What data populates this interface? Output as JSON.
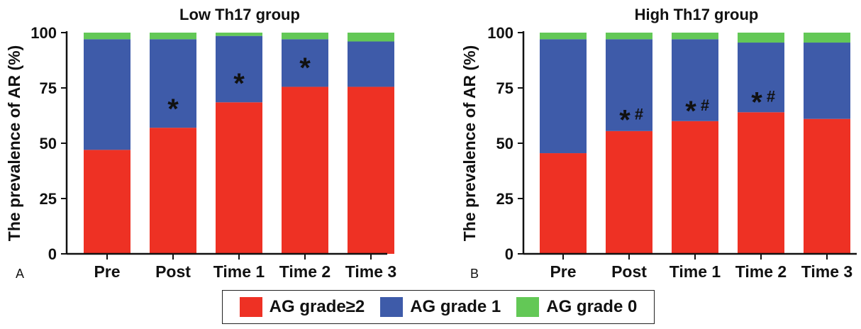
{
  "colors": {
    "grade2": "#EE3124",
    "grade1": "#3E5BA9",
    "grade0": "#63C856"
  },
  "legend": {
    "items": [
      {
        "key": "grade2",
        "label": "AG grade≥2"
      },
      {
        "key": "grade1",
        "label": "AG grade 1"
      },
      {
        "key": "grade0",
        "label": "AG grade 0"
      }
    ]
  },
  "chart_data": [
    {
      "type": "bar",
      "stacked": true,
      "panel": "A",
      "title": "Low Th17 group",
      "ylabel": "The prevalence of AR (%)",
      "xlabel": "",
      "ylim": [
        0,
        100
      ],
      "yticks": [
        0,
        25,
        50,
        75,
        100
      ],
      "categories": [
        "Pre",
        "Post",
        "Time 1",
        "Time 2",
        "Time 3"
      ],
      "series": [
        {
          "name": "AG grade≥2",
          "color_key": "grade2",
          "values": [
            47,
            57,
            68.5,
            75.5,
            75.5
          ]
        },
        {
          "name": "AG grade 1",
          "color_key": "grade1",
          "values": [
            50,
            40,
            30,
            21.5,
            20.5
          ]
        },
        {
          "name": "AG grade 0",
          "color_key": "grade0",
          "values": [
            3,
            3,
            1.5,
            3,
            4
          ]
        }
      ],
      "annotations": [
        {
          "category": "Post",
          "text": "*",
          "y": 67
        },
        {
          "category": "Time 1",
          "text": "*",
          "y": 78.5
        },
        {
          "category": "Time 2",
          "text": "*",
          "y": 85.5
        }
      ]
    },
    {
      "type": "bar",
      "stacked": true,
      "panel": "B",
      "title": "High Th17 group",
      "ylabel": "The prevalence of AR (%)",
      "xlabel": "",
      "ylim": [
        0,
        100
      ],
      "yticks": [
        0,
        25,
        50,
        75,
        100
      ],
      "categories": [
        "Pre",
        "Post",
        "Time 1",
        "Time 2",
        "Time 3"
      ],
      "series": [
        {
          "name": "AG grade≥2",
          "color_key": "grade2",
          "values": [
            45.5,
            55.5,
            60,
            64,
            61
          ]
        },
        {
          "name": "AG grade 1",
          "color_key": "grade1",
          "values": [
            51.5,
            41.5,
            37,
            31.5,
            34.5
          ]
        },
        {
          "name": "AG grade 0",
          "color_key": "grade0",
          "values": [
            3,
            3,
            3,
            4.5,
            4.5
          ]
        }
      ],
      "annotations": [
        {
          "category": "Post",
          "text": "*#",
          "y": 62
        },
        {
          "category": "Time 1",
          "text": "*#",
          "y": 66
        },
        {
          "category": "Time 2",
          "text": "*#",
          "y": 70
        }
      ]
    }
  ]
}
